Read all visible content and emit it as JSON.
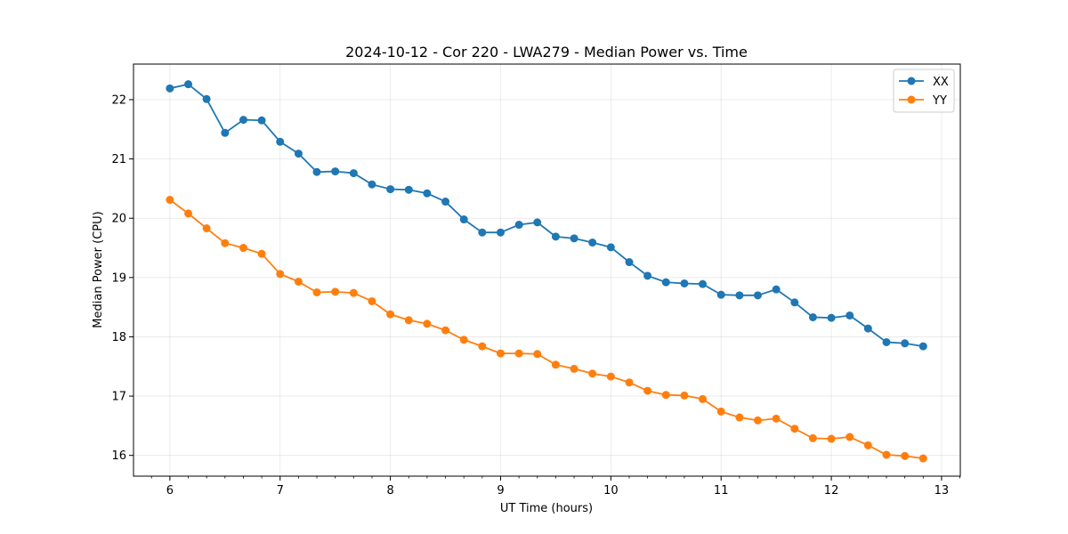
{
  "chart_data": {
    "type": "line",
    "title": "2024-10-12 - Cor 220 - LWA279 - Median Power vs. Time",
    "xlabel": "UT Time (hours)",
    "ylabel": "Median Power (CPU)",
    "xlim": [
      5.67,
      13.17
    ],
    "ylim": [
      15.65,
      22.6
    ],
    "xticks": [
      6,
      7,
      8,
      9,
      10,
      11,
      12,
      13
    ],
    "yticks": [
      16,
      17,
      18,
      19,
      20,
      21,
      22
    ],
    "grid": true,
    "legend_position": "top-right",
    "x": [
      6.0,
      6.167,
      6.333,
      6.5,
      6.667,
      6.833,
      7.0,
      7.167,
      7.333,
      7.5,
      7.667,
      7.833,
      8.0,
      8.167,
      8.333,
      8.5,
      8.667,
      8.833,
      9.0,
      9.167,
      9.333,
      9.5,
      9.667,
      9.833,
      10.0,
      10.167,
      10.333,
      10.5,
      10.667,
      10.833,
      11.0,
      11.167,
      11.333,
      11.5,
      11.667,
      11.833,
      12.0,
      12.167,
      12.333,
      12.5,
      12.667,
      12.833
    ],
    "series": [
      {
        "name": "XX",
        "color": "#1f77b4",
        "values": [
          22.19,
          22.26,
          22.01,
          21.44,
          21.66,
          21.65,
          21.29,
          21.09,
          20.78,
          20.79,
          20.76,
          20.57,
          20.49,
          20.48,
          20.42,
          20.28,
          19.98,
          19.76,
          19.76,
          19.89,
          19.93,
          19.69,
          19.66,
          19.59,
          19.51,
          19.26,
          19.03,
          18.92,
          18.9,
          18.89,
          18.71,
          18.7,
          18.7,
          18.8,
          18.58,
          18.33,
          18.32,
          18.36,
          18.14,
          17.91,
          17.89,
          17.84
        ]
      },
      {
        "name": "YY",
        "color": "#ff7f0e",
        "values": [
          20.31,
          20.08,
          19.83,
          19.58,
          19.5,
          19.4,
          19.06,
          18.93,
          18.75,
          18.76,
          18.74,
          18.6,
          18.38,
          18.28,
          18.22,
          18.11,
          17.95,
          17.84,
          17.72,
          17.72,
          17.71,
          17.53,
          17.46,
          17.38,
          17.33,
          17.23,
          17.09,
          17.02,
          17.01,
          16.95,
          16.74,
          16.64,
          16.59,
          16.62,
          16.45,
          16.29,
          16.28,
          16.31,
          16.17,
          16.01,
          15.99,
          15.95
        ]
      }
    ]
  }
}
